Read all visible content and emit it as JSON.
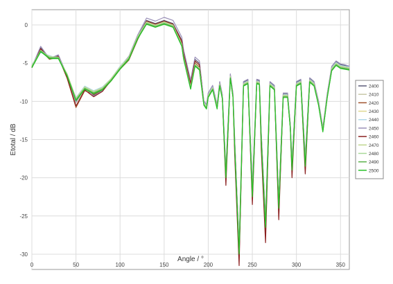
{
  "chart_data": {
    "type": "line",
    "title": "",
    "xlabel": "Angle / °",
    "ylabel": "Etotal / dB",
    "xlim": [
      0,
      360
    ],
    "ylim": [
      -32,
      2
    ],
    "xticks": [
      0,
      50,
      100,
      150,
      200,
      250,
      300,
      350
    ],
    "yticks": [
      0,
      -5,
      -10,
      -15,
      -20,
      -25,
      -30
    ],
    "x_tick_labels": [
      "0",
      "50",
      "100",
      "150",
      "200",
      "250",
      "300",
      "350"
    ],
    "y_tick_labels": [
      "0",
      "-5",
      "-10",
      "-15",
      "-20",
      "-25",
      "-30"
    ],
    "grid": true,
    "legend_position": "right",
    "x": [
      0,
      10,
      20,
      30,
      40,
      50,
      60,
      70,
      80,
      90,
      100,
      110,
      120,
      130,
      140,
      150,
      160,
      170,
      172,
      180,
      185,
      190,
      195,
      198,
      200,
      205,
      210,
      213,
      216,
      220,
      225,
      228,
      230,
      235,
      240,
      245,
      250,
      255,
      258,
      260,
      265,
      270,
      275,
      280,
      285,
      290,
      293,
      295,
      300,
      305,
      310,
      315,
      320,
      325,
      330,
      335,
      340,
      345,
      350,
      355,
      360
    ],
    "series": [
      {
        "name": "2400",
        "color": "#5a5a78",
        "values": [
          -5.5,
          -3.0,
          -4.3,
          -4.0,
          -6.6,
          -10.0,
          -8.2,
          -9.2,
          -8.5,
          -7.0,
          -5.5,
          -4.2,
          -1.5,
          0.6,
          0.2,
          0.6,
          0.2,
          -2.0,
          -3.5,
          -7.5,
          -4.5,
          -5.0,
          -10.0,
          -10.5,
          -9.0,
          -8.0,
          -10.5,
          -7.5,
          -9.2,
          -19.0,
          -6.5,
          -9.0,
          -15.0,
          -29.0,
          -7.5,
          -7.2,
          -21.5,
          -7.2,
          -7.3,
          -14.0,
          -25.5,
          -7.5,
          -8.0,
          -23.0,
          -9.0,
          -9.0,
          -13.0,
          -18.0,
          -7.5,
          -7.2,
          -17.5,
          -7.0,
          -7.5,
          -10.0,
          -13.5,
          -9.0,
          -5.5,
          -4.8,
          -5.2,
          -5.3,
          -5.5
        ]
      },
      {
        "name": "2410",
        "color": "#c8c8a8",
        "values": [
          -5.4,
          -3.2,
          -4.3,
          -4.1,
          -6.8,
          -10.2,
          -8.4,
          -9.0,
          -8.4,
          -7.2,
          -5.7,
          -4.4,
          -1.7,
          0.5,
          0.1,
          0.5,
          0.1,
          -2.2,
          -3.8,
          -7.8,
          -4.8,
          -5.3,
          -10.2,
          -10.7,
          -9.2,
          -8.2,
          -10.7,
          -7.7,
          -9.4,
          -19.5,
          -6.7,
          -9.2,
          -15.5,
          -29.5,
          -7.7,
          -7.4,
          -22.0,
          -7.4,
          -7.5,
          -14.5,
          -26.0,
          -7.7,
          -8.2,
          -23.5,
          -9.2,
          -9.2,
          -13.2,
          -18.5,
          -7.7,
          -7.4,
          -18.0,
          -7.2,
          -7.7,
          -10.2,
          -13.7,
          -9.2,
          -5.7,
          -5.0,
          -5.4,
          -5.5,
          -5.6
        ]
      },
      {
        "name": "2420",
        "color": "#a0522d",
        "values": [
          -5.6,
          -3.3,
          -4.5,
          -4.2,
          -7.0,
          -10.8,
          -8.6,
          -9.1,
          -8.6,
          -7.3,
          -5.8,
          -4.6,
          -1.9,
          0.4,
          0.0,
          0.4,
          0.0,
          -2.4,
          -4.0,
          -8.0,
          -5.0,
          -5.5,
          -10.4,
          -10.9,
          -9.4,
          -8.4,
          -10.9,
          -7.9,
          -9.6,
          -20.0,
          -6.9,
          -9.4,
          -16.0,
          -30.5,
          -7.9,
          -7.6,
          -22.5,
          -7.6,
          -7.7,
          -15.0,
          -27.5,
          -7.9,
          -8.4,
          -24.5,
          -9.4,
          -9.4,
          -13.4,
          -19.0,
          -7.9,
          -7.6,
          -18.5,
          -7.4,
          -7.9,
          -10.4,
          -13.9,
          -9.4,
          -5.9,
          -5.2,
          -5.6,
          -5.7,
          -5.8
        ]
      },
      {
        "name": "2430",
        "color": "#e0d890",
        "values": [
          -5.3,
          -3.4,
          -4.2,
          -4.3,
          -6.7,
          -9.8,
          -8.3,
          -8.8,
          -8.3,
          -7.1,
          -5.6,
          -4.3,
          -1.6,
          0.3,
          -0.1,
          0.3,
          -0.1,
          -2.6,
          -4.2,
          -8.2,
          -5.2,
          -5.7,
          -10.3,
          -10.8,
          -9.3,
          -8.3,
          -10.8,
          -7.8,
          -9.5,
          -19.8,
          -6.8,
          -9.3,
          -15.8,
          -30.0,
          -7.8,
          -7.5,
          -22.3,
          -7.5,
          -7.6,
          -14.8,
          -26.5,
          -7.8,
          -8.3,
          -23.8,
          -9.3,
          -9.3,
          -13.3,
          -18.8,
          -7.8,
          -7.5,
          -18.3,
          -7.3,
          -7.8,
          -10.3,
          -13.8,
          -9.3,
          -5.8,
          -5.1,
          -5.5,
          -5.6,
          -5.7
        ]
      },
      {
        "name": "2440",
        "color": "#b0d8e8",
        "values": [
          -5.2,
          -3.6,
          -4.0,
          -4.4,
          -6.5,
          -9.5,
          -8.0,
          -8.6,
          -8.1,
          -7.0,
          -5.4,
          -4.1,
          -1.4,
          0.2,
          -0.2,
          0.2,
          -0.2,
          -2.8,
          -4.4,
          -8.4,
          -5.4,
          -5.9,
          -10.1,
          -10.6,
          -9.1,
          -8.1,
          -10.6,
          -7.6,
          -9.3,
          -19.2,
          -6.6,
          -9.1,
          -15.2,
          -29.2,
          -7.6,
          -7.3,
          -21.8,
          -7.3,
          -7.4,
          -14.2,
          -25.8,
          -7.6,
          -8.1,
          -23.2,
          -9.1,
          -9.1,
          -13.1,
          -18.2,
          -7.6,
          -7.3,
          -17.8,
          -7.1,
          -7.6,
          -10.1,
          -13.6,
          -9.1,
          -5.6,
          -4.9,
          -5.3,
          -5.4,
          -5.5
        ]
      },
      {
        "name": "2450",
        "color": "#9a90b8",
        "values": [
          -5.5,
          -2.8,
          -4.4,
          -3.9,
          -6.6,
          -10.1,
          -8.2,
          -9.3,
          -8.6,
          -7.1,
          -5.6,
          -4.1,
          -1.3,
          0.9,
          0.5,
          1.0,
          0.6,
          -1.6,
          -3.2,
          -7.2,
          -4.2,
          -4.7,
          -9.9,
          -10.4,
          -8.9,
          -7.9,
          -10.4,
          -7.4,
          -9.1,
          -18.8,
          -6.4,
          -8.9,
          -14.8,
          -28.8,
          -7.4,
          -7.1,
          -21.2,
          -7.1,
          -7.2,
          -13.8,
          -25.2,
          -7.4,
          -7.9,
          -22.8,
          -8.9,
          -8.9,
          -12.9,
          -17.8,
          -7.4,
          -7.1,
          -17.2,
          -6.9,
          -7.4,
          -9.9,
          -13.4,
          -8.9,
          -5.4,
          -4.7,
          -5.1,
          -5.2,
          -5.4
        ]
      },
      {
        "name": "2460",
        "color": "#8b2020",
        "values": [
          -5.6,
          -3.1,
          -4.4,
          -4.1,
          -6.9,
          -10.6,
          -8.5,
          -9.4,
          -8.7,
          -7.2,
          -5.7,
          -4.3,
          -1.6,
          0.5,
          0.1,
          0.5,
          0.1,
          -2.1,
          -3.7,
          -7.7,
          -4.7,
          -5.2,
          -10.3,
          -10.8,
          -9.3,
          -8.3,
          -10.8,
          -7.8,
          -9.5,
          -21.0,
          -6.8,
          -9.3,
          -17.0,
          -31.5,
          -7.8,
          -7.5,
          -23.5,
          -7.5,
          -7.6,
          -16.0,
          -28.5,
          -7.8,
          -8.3,
          -25.5,
          -9.3,
          -9.3,
          -13.3,
          -20.0,
          -7.8,
          -7.5,
          -19.5,
          -7.3,
          -7.8,
          -10.3,
          -13.8,
          -9.3,
          -5.8,
          -5.1,
          -5.5,
          -5.6,
          -5.7
        ]
      },
      {
        "name": "2470",
        "color": "#c0d890",
        "values": [
          -5.3,
          -3.5,
          -4.1,
          -4.3,
          -6.4,
          -9.6,
          -8.1,
          -8.7,
          -8.2,
          -7.0,
          -5.5,
          -4.2,
          -1.5,
          0.4,
          0.0,
          0.4,
          0.0,
          -2.5,
          -4.1,
          -8.1,
          -5.1,
          -5.6,
          -10.2,
          -10.7,
          -9.2,
          -8.2,
          -10.7,
          -7.7,
          -9.4,
          -19.4,
          -6.7,
          -9.2,
          -15.4,
          -29.4,
          -7.7,
          -7.4,
          -21.9,
          -7.4,
          -7.5,
          -14.4,
          -25.9,
          -7.7,
          -8.2,
          -23.4,
          -9.2,
          -9.2,
          -13.2,
          -18.4,
          -7.7,
          -7.4,
          -17.9,
          -7.2,
          -7.7,
          -10.2,
          -13.7,
          -9.2,
          -5.7,
          -5.0,
          -5.4,
          -5.5,
          -5.6
        ]
      },
      {
        "name": "2480",
        "color": "#a8d898",
        "values": [
          -5.4,
          -3.3,
          -4.2,
          -4.2,
          -6.5,
          -9.7,
          -8.2,
          -8.8,
          -8.3,
          -7.1,
          -5.6,
          -4.3,
          -1.6,
          0.3,
          -0.1,
          0.3,
          -0.1,
          -2.6,
          -4.2,
          -8.2,
          -5.2,
          -5.7,
          -10.3,
          -10.8,
          -9.3,
          -8.3,
          -10.8,
          -7.8,
          -9.5,
          -19.6,
          -6.8,
          -9.3,
          -15.6,
          -29.6,
          -7.8,
          -7.5,
          -22.1,
          -7.5,
          -7.6,
          -14.6,
          -26.1,
          -7.8,
          -8.3,
          -23.6,
          -9.3,
          -9.3,
          -13.3,
          -18.6,
          -7.8,
          -7.5,
          -18.1,
          -7.3,
          -7.8,
          -10.3,
          -13.8,
          -9.3,
          -5.8,
          -5.1,
          -5.5,
          -5.6,
          -5.7
        ]
      },
      {
        "name": "2490",
        "color": "#58b048",
        "values": [
          -5.5,
          -3.4,
          -4.3,
          -4.3,
          -6.6,
          -9.8,
          -8.3,
          -8.9,
          -8.4,
          -7.2,
          -5.7,
          -4.4,
          -1.7,
          0.2,
          -0.2,
          0.2,
          -0.2,
          -2.7,
          -4.3,
          -8.3,
          -5.3,
          -5.8,
          -10.4,
          -10.9,
          -9.4,
          -8.4,
          -10.9,
          -7.9,
          -9.6,
          -19.8,
          -6.9,
          -9.4,
          -15.8,
          -29.8,
          -7.9,
          -7.6,
          -22.3,
          -7.6,
          -7.7,
          -14.8,
          -26.3,
          -7.9,
          -8.4,
          -23.8,
          -9.4,
          -9.4,
          -13.4,
          -18.8,
          -7.9,
          -7.6,
          -18.3,
          -7.4,
          -7.9,
          -10.4,
          -13.9,
          -9.4,
          -5.9,
          -5.2,
          -5.6,
          -5.7,
          -5.8
        ]
      },
      {
        "name": "2500",
        "color": "#28c028",
        "values": [
          -5.6,
          -3.5,
          -4.4,
          -4.4,
          -6.7,
          -9.9,
          -8.4,
          -9.0,
          -8.5,
          -7.3,
          -5.8,
          -4.5,
          -1.8,
          0.1,
          -0.3,
          0.1,
          -0.3,
          -2.8,
          -4.4,
          -8.4,
          -5.4,
          -5.9,
          -10.5,
          -11.0,
          -9.5,
          -8.5,
          -11.0,
          -8.0,
          -9.7,
          -20.0,
          -7.0,
          -9.5,
          -16.0,
          -30.0,
          -8.0,
          -7.7,
          -22.5,
          -7.7,
          -7.8,
          -15.0,
          -26.5,
          -8.0,
          -8.5,
          -24.0,
          -9.5,
          -9.5,
          -13.5,
          -19.0,
          -8.0,
          -7.7,
          -18.5,
          -7.5,
          -8.0,
          -10.5,
          -14.0,
          -9.5,
          -6.0,
          -5.3,
          -5.7,
          -5.8,
          -5.9
        ]
      }
    ]
  }
}
